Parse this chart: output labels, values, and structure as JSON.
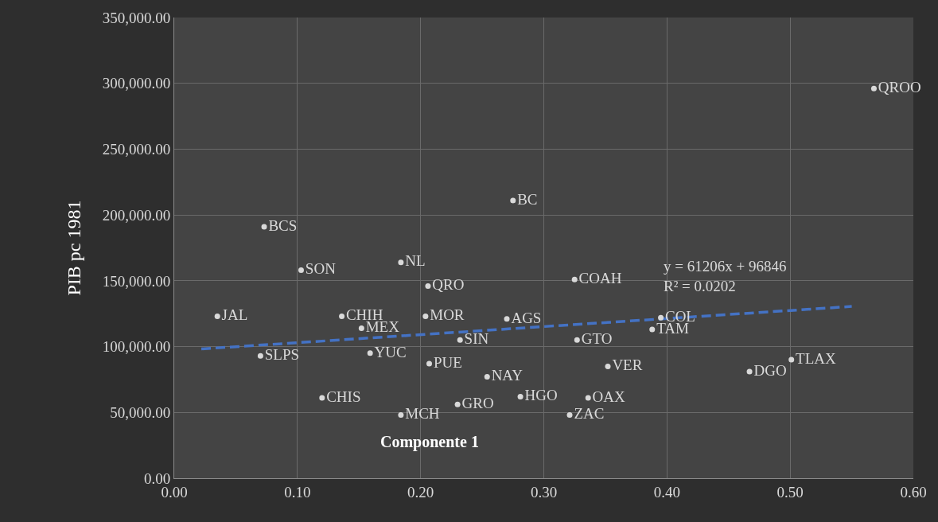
{
  "chart_data": {
    "type": "scatter",
    "xlabel": "Componente 1",
    "ylabel": "PIB pc 1981",
    "xlim": [
      0,
      0.6
    ],
    "ylim": [
      0,
      350000
    ],
    "xticks": [
      {
        "value": 0,
        "label": "0.00"
      },
      {
        "value": 0.1,
        "label": "0.10"
      },
      {
        "value": 0.2,
        "label": "0.20"
      },
      {
        "value": 0.3,
        "label": "0.30"
      },
      {
        "value": 0.4,
        "label": "0.40"
      },
      {
        "value": 0.5,
        "label": "0.50"
      },
      {
        "value": 0.6,
        "label": "0.60"
      }
    ],
    "yticks": [
      {
        "value": 0,
        "label": "0.00"
      },
      {
        "value": 50000,
        "label": "50,000.00"
      },
      {
        "value": 100000,
        "label": "100,000.00"
      },
      {
        "value": 150000,
        "label": "150,000.00"
      },
      {
        "value": 200000,
        "label": "200,000.00"
      },
      {
        "value": 250000,
        "label": "250,000.00"
      },
      {
        "value": 300000,
        "label": "300,000.00"
      },
      {
        "value": 350000,
        "label": "350,000.00"
      }
    ],
    "grid": true,
    "legend": false,
    "series": [
      {
        "type": "scatter",
        "marker": "circle",
        "color": "#d9d9d9",
        "x": [
          0.568,
          0.275,
          0.073,
          0.103,
          0.184,
          0.206,
          0.325,
          0.035,
          0.136,
          0.152,
          0.204,
          0.27,
          0.395,
          0.388,
          0.232,
          0.327,
          0.07,
          0.159,
          0.207,
          0.352,
          0.254,
          0.467,
          0.501,
          0.12,
          0.281,
          0.336,
          0.23,
          0.184,
          0.321
        ],
        "values": [
          296000,
          211000,
          191000,
          158000,
          164000,
          146000,
          151000,
          123000,
          123000,
          114000,
          123000,
          121000,
          122000,
          113000,
          105000,
          105000,
          93000,
          95000,
          87000,
          85000,
          77000,
          81000,
          90000,
          61000,
          62000,
          61000,
          56000,
          48000,
          48000
        ],
        "value_labels": [
          "QROO",
          "BC",
          "BCS",
          "SON",
          "NL",
          "QRO",
          "COAH",
          "JAL",
          "CHIH",
          "MEX",
          "MOR",
          "AGS",
          "COL",
          "TAM",
          "SIN",
          "GTO",
          "SLPS",
          "YUC",
          "PUE",
          "VER",
          "NAY",
          "DGO",
          "TLAX",
          "CHIS",
          "HGO",
          "OAX",
          "GRO",
          "MCH",
          "ZAC"
        ]
      },
      {
        "type": "line",
        "color": "#4472c4",
        "line_style": "dashed",
        "marker": "none",
        "x": [
          0.022,
          0.55
        ],
        "values": [
          98200,
          130500
        ]
      }
    ],
    "annotations": [
      "y = 61206x + 96846\nR² = 0.0202"
    ]
  }
}
